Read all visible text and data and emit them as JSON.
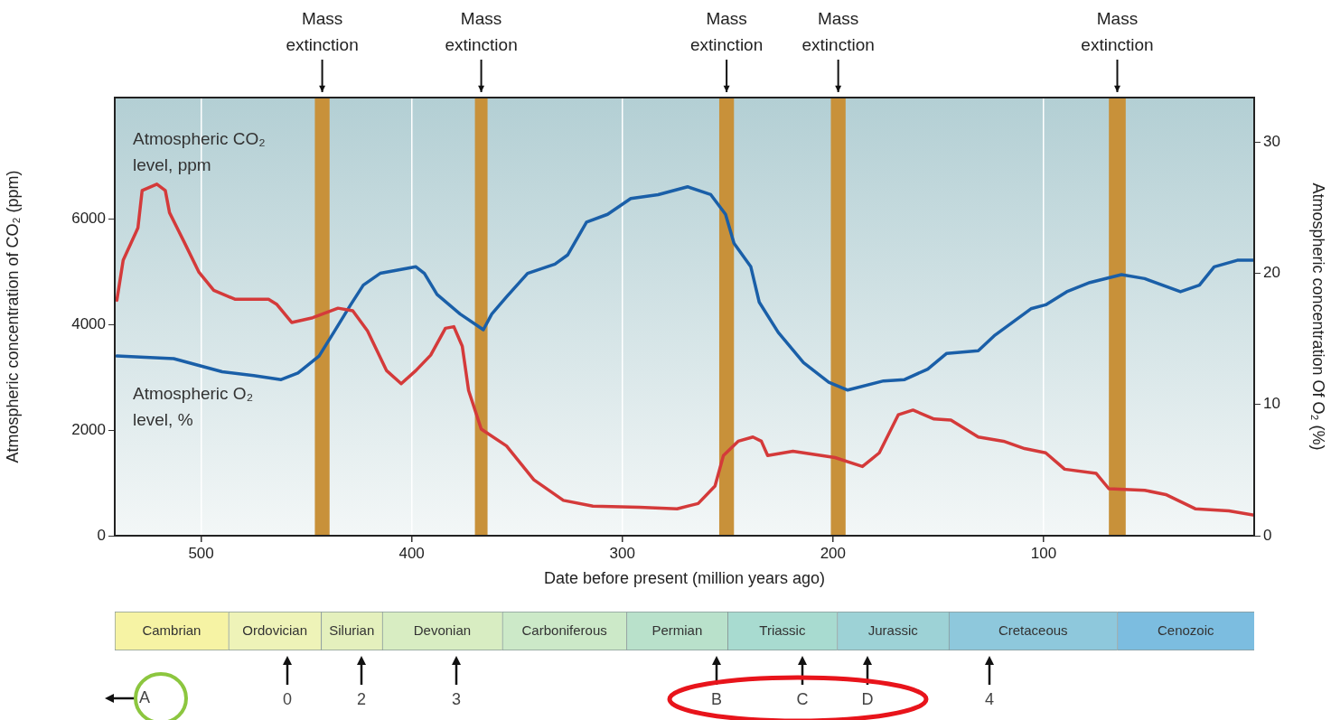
{
  "chart_data": [
    {
      "type": "line",
      "xlabel": "Date before present (million years ago)",
      "ylabel": "Atmospheric concentration of CO₂ (ppm)",
      "y2label": "Atmospheric concentration Of O₂ (%)",
      "xlim": [
        541,
        0
      ],
      "xticks": [
        500,
        400,
        300,
        200,
        100
      ],
      "ylim": [
        0,
        8300
      ],
      "yticks": [
        0,
        2000,
        4000,
        6000
      ],
      "y2lim": [
        0,
        33.4
      ],
      "y2ticks": [
        0,
        10,
        20,
        30
      ],
      "grid": "x",
      "series": [
        {
          "name": "Atmospheric CO₂ level, ppm",
          "color": "#d43a3a",
          "x": [
            540,
            537,
            530,
            528,
            521,
            517,
            515,
            508,
            501,
            494,
            484,
            468,
            464,
            457,
            447,
            435,
            428,
            421,
            412,
            405,
            398,
            391,
            384,
            380,
            376,
            373,
            367,
            355,
            342,
            328,
            314,
            292,
            274,
            264,
            256,
            252,
            245,
            238,
            234,
            231,
            219,
            199,
            186,
            178,
            169,
            162,
            152,
            144,
            131,
            119,
            109,
            99,
            90,
            75,
            69,
            52,
            42,
            28,
            12,
            0
          ],
          "values": [
            4460,
            5220,
            5830,
            6540,
            6660,
            6540,
            6120,
            5560,
            4990,
            4650,
            4480,
            4480,
            4380,
            4040,
            4130,
            4310,
            4260,
            3880,
            3130,
            2880,
            3130,
            3420,
            3930,
            3960,
            3590,
            2750,
            2020,
            1700,
            1060,
            670,
            560,
            540,
            510,
            610,
            940,
            1520,
            1790,
            1870,
            1790,
            1520,
            1600,
            1480,
            1310,
            1570,
            2290,
            2380,
            2210,
            2190,
            1870,
            1790,
            1650,
            1570,
            1260,
            1180,
            890,
            860,
            780,
            510,
            470,
            390
          ]
        },
        {
          "name": "Atmospheric O₂ level, %",
          "color": "#1a5fa8",
          "axis": "y2",
          "x": [
            540,
            513,
            490,
            475,
            462,
            454,
            444,
            437,
            429,
            423,
            415,
            398,
            394,
            388,
            377,
            366,
            362,
            355,
            345,
            332,
            326,
            317,
            307,
            296,
            283,
            269,
            258,
            251,
            247,
            239,
            235,
            226,
            214,
            202,
            193,
            176,
            166,
            155,
            146,
            131,
            123,
            106,
            99,
            89,
            78,
            63,
            52,
            35,
            26,
            19,
            8,
            0
          ],
          "values": [
            13.7,
            13.5,
            12.5,
            12.2,
            11.9,
            12.4,
            13.7,
            15.5,
            17.6,
            19.1,
            20.0,
            20.5,
            20.0,
            18.4,
            16.9,
            15.7,
            16.9,
            18.2,
            20.0,
            20.7,
            21.4,
            23.9,
            24.5,
            25.7,
            26.0,
            26.6,
            26.0,
            24.5,
            22.3,
            20.5,
            17.8,
            15.5,
            13.2,
            11.7,
            11.1,
            11.8,
            11.9,
            12.7,
            13.9,
            14.1,
            15.3,
            17.3,
            17.6,
            18.6,
            19.3,
            19.9,
            19.6,
            18.6,
            19.1,
            20.5,
            21.0,
            21.0
          ]
        }
      ],
      "bands": [
        {
          "axis": "x",
          "from": 446,
          "to": 439,
          "label": "Mass extinction",
          "color": "#c8913a"
        },
        {
          "axis": "x",
          "from": 370,
          "to": 364,
          "label": "Mass extinction",
          "color": "#c8913a"
        },
        {
          "axis": "x",
          "from": 254,
          "to": 247,
          "label": "Mass extinction",
          "color": "#c8913a"
        },
        {
          "axis": "x",
          "from": 201,
          "to": 194,
          "label": "Mass extinction",
          "color": "#c8913a"
        },
        {
          "axis": "x",
          "from": 69,
          "to": 61,
          "label": "Mass extinction",
          "color": "#c8913a"
        }
      ]
    },
    {
      "type": "bar",
      "orientation": "horizontal",
      "stacked": true,
      "categories": [
        null
      ],
      "xlim": [
        541,
        0
      ],
      "tick_labels": false,
      "series": [
        {
          "name": "Cenozoic",
          "color": "#7cbde0",
          "values": [
            65
          ]
        },
        {
          "name": "Cretaceous",
          "color": "#8ec8dc",
          "values": [
            80
          ]
        },
        {
          "name": "Jurassic",
          "color": "#9dd2d6",
          "values": [
            53
          ]
        },
        {
          "name": "Triassic",
          "color": "#a8dbd0",
          "values": [
            52
          ]
        },
        {
          "name": "Permian",
          "color": "#b9e1cb",
          "values": [
            48
          ]
        },
        {
          "name": "Carboniferous",
          "color": "#cce9c8",
          "values": [
            59
          ]
        },
        {
          "name": "Devonian",
          "color": "#d8edc2",
          "values": [
            57
          ]
        },
        {
          "name": "Silurian",
          "color": "#e4f0bd",
          "values": [
            29
          ]
        },
        {
          "name": "Ordovician",
          "color": "#eef3b8",
          "values": [
            44
          ]
        },
        {
          "name": "Cambrian",
          "color": "#f6f3a4",
          "values": [
            54
          ]
        }
      ],
      "annotations": [
        "A",
        "0",
        "2",
        "3",
        "B",
        "C",
        "D",
        "4"
      ]
    }
  ]
}
